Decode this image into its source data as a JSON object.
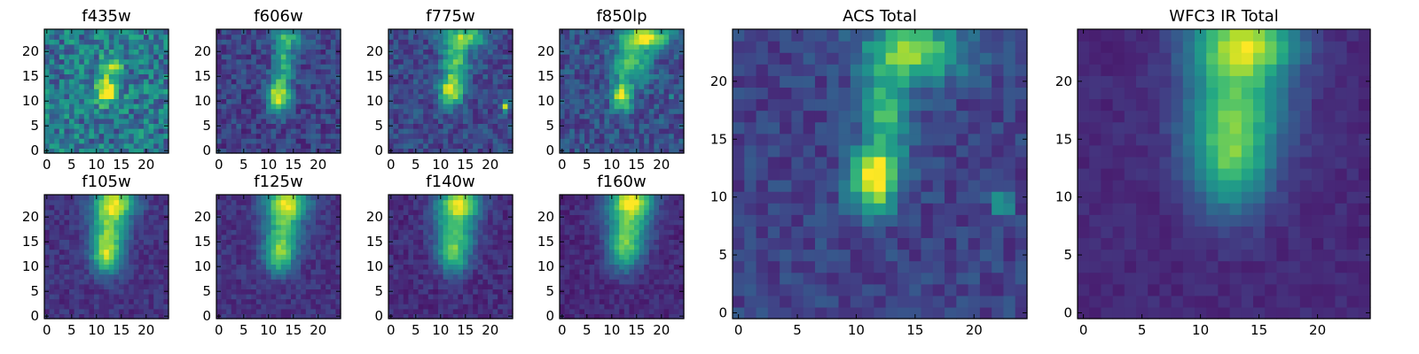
{
  "chart_data": [
    {
      "type": "heatmap",
      "title": "f435w",
      "x_ticks": [
        "0",
        "5",
        "10",
        "15",
        "20"
      ],
      "y_ticks": [
        "0",
        "5",
        "10",
        "15",
        "20"
      ],
      "xlim": [
        -0.5,
        24.5
      ],
      "ylim": [
        -0.5,
        24.5
      ],
      "grid": false,
      "colormap": "viridis",
      "blobs": [
        {
          "x": 12,
          "y": 12,
          "sx": 1.6,
          "sy": 1.8,
          "amp": 0.75
        },
        {
          "x": 13,
          "y": 17,
          "sx": 1.5,
          "sy": 2,
          "amp": 0.35
        }
      ],
      "noise": 0.22,
      "base": 0.4
    },
    {
      "type": "heatmap",
      "title": "f606w",
      "x_ticks": [
        "0",
        "5",
        "10",
        "15",
        "20"
      ],
      "y_ticks": [
        "0",
        "5",
        "10",
        "15",
        "20"
      ],
      "xlim": [
        -0.5,
        24.5
      ],
      "ylim": [
        -0.5,
        24.5
      ],
      "grid": false,
      "colormap": "viridis",
      "blobs": [
        {
          "x": 12,
          "y": 11,
          "sx": 1.6,
          "sy": 2.2,
          "amp": 0.75
        },
        {
          "x": 13,
          "y": 18,
          "sx": 1.4,
          "sy": 3,
          "amp": 0.45
        },
        {
          "x": 14,
          "y": 23,
          "sx": 2.5,
          "sy": 1.5,
          "amp": 0.35
        }
      ],
      "noise": 0.12,
      "base": 0.2
    },
    {
      "type": "heatmap",
      "title": "f775w",
      "x_ticks": [
        "0",
        "5",
        "10",
        "15",
        "20"
      ],
      "y_ticks": [
        "0",
        "5",
        "10",
        "15",
        "20"
      ],
      "xlim": [
        -0.5,
        24.5
      ],
      "ylim": [
        -0.5,
        24.5
      ],
      "grid": false,
      "colormap": "viridis",
      "blobs": [
        {
          "x": 12,
          "y": 12,
          "sx": 1.6,
          "sy": 2.2,
          "amp": 0.7
        },
        {
          "x": 13,
          "y": 18,
          "sx": 1.8,
          "sy": 3,
          "amp": 0.5
        },
        {
          "x": 15,
          "y": 23,
          "sx": 3,
          "sy": 1.5,
          "amp": 0.55
        },
        {
          "x": 23,
          "y": 9,
          "sx": 0.6,
          "sy": 0.8,
          "amp": 0.7
        }
      ],
      "noise": 0.12,
      "base": 0.22
    },
    {
      "type": "heatmap",
      "title": "f850lp",
      "x_ticks": [
        "0",
        "5",
        "10",
        "15",
        "20"
      ],
      "y_ticks": [
        "0",
        "5",
        "10",
        "15",
        "20"
      ],
      "xlim": [
        -0.5,
        24.5
      ],
      "ylim": [
        -0.5,
        24.5
      ],
      "grid": false,
      "colormap": "viridis",
      "blobs": [
        {
          "x": 12,
          "y": 11,
          "sx": 1.4,
          "sy": 2,
          "amp": 0.65
        },
        {
          "x": 14,
          "y": 18,
          "sx": 2.5,
          "sy": 3,
          "amp": 0.5
        },
        {
          "x": 17,
          "y": 23,
          "sx": 3,
          "sy": 1.5,
          "amp": 0.75
        },
        {
          "x": 22,
          "y": 11,
          "sx": 0.5,
          "sy": 0.6,
          "amp": 0.3
        }
      ],
      "noise": 0.13,
      "base": 0.25
    },
    {
      "type": "heatmap",
      "title": "f105w",
      "x_ticks": [
        "0",
        "5",
        "10",
        "15",
        "20"
      ],
      "y_ticks": [
        "0",
        "5",
        "10",
        "15",
        "20"
      ],
      "xlim": [
        -0.5,
        24.5
      ],
      "ylim": [
        -0.5,
        24.5
      ],
      "grid": false,
      "colormap": "viridis",
      "blobs": [
        {
          "x": 12,
          "y": 12,
          "sx": 2,
          "sy": 2.5,
          "amp": 0.55
        },
        {
          "x": 12.5,
          "y": 18,
          "sx": 2.5,
          "sy": 4,
          "amp": 0.6
        },
        {
          "x": 14,
          "y": 23,
          "sx": 3,
          "sy": 2,
          "amp": 0.6
        }
      ],
      "noise": 0.07,
      "base": 0.15
    },
    {
      "type": "heatmap",
      "title": "f125w",
      "x_ticks": [
        "0",
        "5",
        "10",
        "15",
        "20"
      ],
      "y_ticks": [
        "0",
        "5",
        "10",
        "15",
        "20"
      ],
      "xlim": [
        -0.5,
        24.5
      ],
      "ylim": [
        -0.5,
        24.5
      ],
      "grid": false,
      "colormap": "viridis",
      "blobs": [
        {
          "x": 12,
          "y": 12,
          "sx": 2,
          "sy": 2.5,
          "amp": 0.5
        },
        {
          "x": 13,
          "y": 18,
          "sx": 2.5,
          "sy": 4,
          "amp": 0.55
        },
        {
          "x": 14,
          "y": 23,
          "sx": 3,
          "sy": 2,
          "amp": 0.6
        }
      ],
      "noise": 0.07,
      "base": 0.15
    },
    {
      "type": "heatmap",
      "title": "f140w",
      "x_ticks": [
        "0",
        "5",
        "10",
        "15",
        "20"
      ],
      "y_ticks": [
        "0",
        "5",
        "10",
        "15",
        "20"
      ],
      "xlim": [
        -0.5,
        24.5
      ],
      "ylim": [
        -0.5,
        24.5
      ],
      "grid": false,
      "colormap": "viridis",
      "blobs": [
        {
          "x": 12.5,
          "y": 12,
          "sx": 2,
          "sy": 2.5,
          "amp": 0.45
        },
        {
          "x": 13,
          "y": 18,
          "sx": 2.8,
          "sy": 4,
          "amp": 0.55
        },
        {
          "x": 14,
          "y": 23,
          "sx": 3,
          "sy": 2,
          "amp": 0.6
        }
      ],
      "noise": 0.07,
      "base": 0.13
    },
    {
      "type": "heatmap",
      "title": "f160w",
      "x_ticks": [
        "0",
        "5",
        "10",
        "15",
        "20"
      ],
      "y_ticks": [
        "0",
        "5",
        "10",
        "15",
        "20"
      ],
      "xlim": [
        -0.5,
        24.5
      ],
      "ylim": [
        -0.5,
        24.5
      ],
      "grid": false,
      "colormap": "viridis",
      "blobs": [
        {
          "x": 12.5,
          "y": 13,
          "sx": 2.2,
          "sy": 3,
          "amp": 0.45
        },
        {
          "x": 13.5,
          "y": 19,
          "sx": 3,
          "sy": 4,
          "amp": 0.55
        },
        {
          "x": 14,
          "y": 23.5,
          "sx": 3,
          "sy": 2,
          "amp": 0.6
        }
      ],
      "noise": 0.06,
      "base": 0.12
    },
    {
      "type": "heatmap",
      "title": "ACS Total",
      "x_ticks": [
        "0",
        "5",
        "10",
        "15",
        "20"
      ],
      "y_ticks": [
        "0",
        "5",
        "10",
        "15",
        "20"
      ],
      "xlim": [
        -0.5,
        24.5
      ],
      "ylim": [
        -0.5,
        24.5
      ],
      "grid": false,
      "colormap": "viridis",
      "blobs": [
        {
          "x": 11.5,
          "y": 11.5,
          "sx": 1.4,
          "sy": 1.8,
          "amp": 0.85
        },
        {
          "x": 12.5,
          "y": 17,
          "sx": 1.4,
          "sy": 3,
          "amp": 0.45
        },
        {
          "x": 15,
          "y": 22.5,
          "sx": 3,
          "sy": 1.8,
          "amp": 0.6
        },
        {
          "x": 22.5,
          "y": 9.5,
          "sx": 0.6,
          "sy": 0.8,
          "amp": 0.45
        }
      ],
      "noise": 0.09,
      "base": 0.2
    },
    {
      "type": "heatmap",
      "title": "WFC3 IR Total",
      "x_ticks": [
        "0",
        "5",
        "10",
        "15",
        "20"
      ],
      "y_ticks": [
        "0",
        "5",
        "10",
        "15",
        "20"
      ],
      "xlim": [
        -0.5,
        24.5
      ],
      "ylim": [
        -0.5,
        24.5
      ],
      "grid": false,
      "colormap": "viridis",
      "blobs": [
        {
          "x": 12.5,
          "y": 12.5,
          "sx": 2.2,
          "sy": 3,
          "amp": 0.4
        },
        {
          "x": 13,
          "y": 18,
          "sx": 3,
          "sy": 4,
          "amp": 0.55
        },
        {
          "x": 14,
          "y": 23.5,
          "sx": 3,
          "sy": 2,
          "amp": 0.65
        }
      ],
      "noise": 0.04,
      "base": 0.12
    }
  ]
}
